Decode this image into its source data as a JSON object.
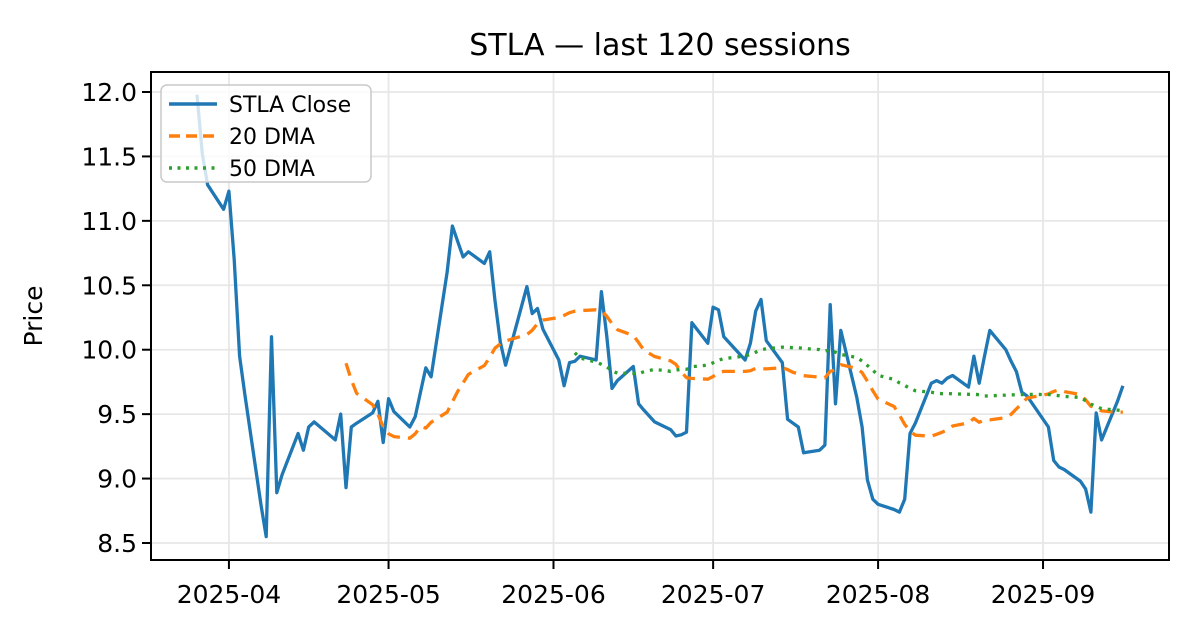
{
  "figure": {
    "title": "STLA — last 120 sessions",
    "y_axis_title": "Price",
    "background": "#ffffff",
    "grid_color": "#e7e7e7",
    "spine_color": "#000000",
    "legend_position": "upper left"
  },
  "chart_data": {
    "type": "line",
    "title": "STLA — last 120 sessions",
    "xlabel": "",
    "ylabel": "Price",
    "grid": true,
    "ylim": [
      8.37,
      12.16
    ],
    "y_ticks": [
      8.5,
      9.0,
      9.5,
      10.0,
      10.5,
      11.0,
      11.5,
      12.0
    ],
    "y_tick_labels": [
      "8.5",
      "9.0",
      "9.5",
      "10.0",
      "10.5",
      "11.0",
      "11.5",
      "12.0"
    ],
    "x_ticks": [
      {
        "date": "2025-04-01",
        "label": "2025-04"
      },
      {
        "date": "2025-05-01",
        "label": "2025-05"
      },
      {
        "date": "2025-06-01",
        "label": "2025-06"
      },
      {
        "date": "2025-07-01",
        "label": "2025-07"
      },
      {
        "date": "2025-08-01",
        "label": "2025-08"
      },
      {
        "date": "2025-09-01",
        "label": "2025-09"
      }
    ],
    "series": [
      {
        "name": "STLA Close",
        "color": "#1f77b4",
        "style": "solid",
        "kind": "close"
      },
      {
        "name": "20 DMA",
        "color": "#ff7f0e",
        "style": "dashed",
        "kind": "rolling_mean",
        "window": 20
      },
      {
        "name": "50 DMA",
        "color": "#2ca02c",
        "style": "dotted",
        "kind": "rolling_mean",
        "window": 50
      }
    ],
    "dates": [
      "2025-03-26",
      "2025-03-27",
      "2025-03-28",
      "2025-03-31",
      "2025-04-01",
      "2025-04-02",
      "2025-04-03",
      "2025-04-04",
      "2025-04-07",
      "2025-04-08",
      "2025-04-09",
      "2025-04-10",
      "2025-04-11",
      "2025-04-14",
      "2025-04-15",
      "2025-04-16",
      "2025-04-17",
      "2025-04-21",
      "2025-04-22",
      "2025-04-23",
      "2025-04-24",
      "2025-04-25",
      "2025-04-28",
      "2025-04-29",
      "2025-04-30",
      "2025-05-01",
      "2025-05-02",
      "2025-05-05",
      "2025-05-06",
      "2025-05-07",
      "2025-05-08",
      "2025-05-09",
      "2025-05-12",
      "2025-05-13",
      "2025-05-14",
      "2025-05-15",
      "2025-05-16",
      "2025-05-19",
      "2025-05-20",
      "2025-05-21",
      "2025-05-22",
      "2025-05-23",
      "2025-05-27",
      "2025-05-28",
      "2025-05-29",
      "2025-05-30",
      "2025-06-02",
      "2025-06-03",
      "2025-06-04",
      "2025-06-05",
      "2025-06-06",
      "2025-06-09",
      "2025-06-10",
      "2025-06-11",
      "2025-06-12",
      "2025-06-13",
      "2025-06-16",
      "2025-06-17",
      "2025-06-18",
      "2025-06-20",
      "2025-06-23",
      "2025-06-24",
      "2025-06-25",
      "2025-06-26",
      "2025-06-27",
      "2025-06-30",
      "2025-07-01",
      "2025-07-02",
      "2025-07-03",
      "2025-07-07",
      "2025-07-08",
      "2025-07-09",
      "2025-07-10",
      "2025-07-11",
      "2025-07-14",
      "2025-07-15",
      "2025-07-16",
      "2025-07-17",
      "2025-07-18",
      "2025-07-21",
      "2025-07-22",
      "2025-07-23",
      "2025-07-24",
      "2025-07-25",
      "2025-07-28",
      "2025-07-29",
      "2025-07-30",
      "2025-07-31",
      "2025-08-01",
      "2025-08-04",
      "2025-08-05",
      "2025-08-06",
      "2025-08-07",
      "2025-08-08",
      "2025-08-11",
      "2025-08-12",
      "2025-08-13",
      "2025-08-14",
      "2025-08-15",
      "2025-08-18",
      "2025-08-19",
      "2025-08-20",
      "2025-08-21",
      "2025-08-22",
      "2025-08-25",
      "2025-08-26",
      "2025-08-27",
      "2025-08-28",
      "2025-08-29",
      "2025-09-02",
      "2025-09-03",
      "2025-09-04",
      "2025-09-05",
      "2025-09-08",
      "2025-09-09",
      "2025-09-10",
      "2025-09-11",
      "2025-09-12",
      "2025-09-15",
      "2025-09-16"
    ],
    "closes": [
      11.98,
      11.52,
      11.28,
      11.09,
      11.23,
      10.7,
      9.95,
      9.65,
      8.8,
      8.55,
      10.1,
      8.89,
      9.03,
      9.35,
      9.22,
      9.4,
      9.44,
      9.3,
      9.5,
      8.93,
      9.4,
      9.43,
      9.51,
      9.6,
      9.28,
      9.62,
      9.52,
      9.4,
      9.48,
      9.67,
      9.86,
      9.79,
      10.6,
      10.96,
      10.84,
      10.72,
      10.76,
      10.67,
      10.76,
      10.38,
      10.06,
      9.88,
      10.49,
      10.28,
      10.32,
      10.16,
      9.92,
      9.72,
      9.9,
      9.91,
      9.95,
      9.92,
      10.45,
      10.11,
      9.7,
      9.76,
      9.87,
      9.58,
      9.53,
      9.44,
      9.38,
      9.33,
      9.34,
      9.36,
      10.21,
      10.05,
      10.33,
      10.31,
      10.1,
      9.92,
      10.05,
      10.3,
      10.39,
      10.07,
      9.9,
      9.46,
      9.43,
      9.4,
      9.2,
      9.22,
      9.26,
      10.35,
      9.58,
      10.15,
      9.63,
      9.4,
      8.99,
      8.84,
      8.8,
      8.76,
      8.74,
      8.84,
      9.35,
      9.43,
      9.74,
      9.76,
      9.74,
      9.78,
      9.8,
      9.71,
      9.95,
      9.74,
      9.95,
      10.15,
      10.0,
      9.91,
      9.83,
      9.67,
      9.64,
      9.4,
      9.14,
      9.09,
      9.07,
      8.98,
      8.92,
      8.74,
      9.51,
      9.3,
      9.6,
      9.72
    ]
  }
}
